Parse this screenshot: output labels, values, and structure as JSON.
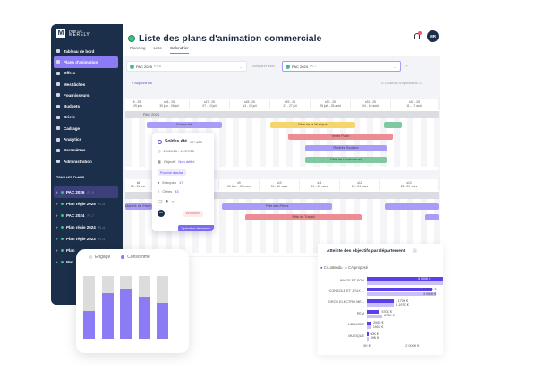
{
  "app": {
    "brand_small": "High Co",
    "brand": "MERELY",
    "avatar": "MR",
    "notification_icon": "bell-icon"
  },
  "sidebar": {
    "items": [
      {
        "label": "Tableau de bord",
        "icon": "home-icon"
      },
      {
        "label": "Plans d'animation",
        "icon": "calendar-icon",
        "active": true
      },
      {
        "label": "Offres",
        "icon": "tag-icon"
      },
      {
        "label": "Mes tâches",
        "icon": "tasks-icon"
      },
      {
        "label": "Fournisseurs",
        "icon": "truck-icon"
      },
      {
        "label": "Budgets",
        "icon": "budget-icon"
      },
      {
        "label": "Briefs",
        "icon": "briefcase-icon"
      },
      {
        "label": "Cadrage",
        "icon": "frame-icon"
      },
      {
        "label": "Analytics",
        "icon": "chart-icon"
      },
      {
        "label": "Paramètres",
        "icon": "gear-icon"
      },
      {
        "label": "Administration",
        "icon": "admin-icon"
      }
    ],
    "plans_header": "TOUS LES PLANS",
    "plans": [
      {
        "label": "PAC 2026",
        "tag": "PL-9",
        "active": true
      },
      {
        "label": "Plan régie 2025",
        "tag": "PL-8"
      },
      {
        "label": "PAC 2024",
        "tag": "PL-7"
      },
      {
        "label": "Plan régie 2024",
        "tag": "PL-6"
      },
      {
        "label": "Plan régie 2023",
        "tag": "PL-5"
      },
      {
        "label": "Plan",
        "tag": ""
      },
      {
        "label": "Mar",
        "tag": ""
      }
    ]
  },
  "header": {
    "title": "Liste des plans d'animation commerciale",
    "tabs": [
      "Planning",
      "Liste",
      "Calendrier"
    ],
    "active_tab": "Calendrier"
  },
  "filters": {
    "plan": "PAC 2025",
    "plan_tag": "PL-8",
    "compare_label": "comparer avec",
    "compare": "PAC 2024",
    "compare_tag": "PL-7",
    "today": "Aujourd'hui",
    "colors": "Couleurs d'opérations"
  },
  "calendar_top": {
    "weeks": [
      [
        "5 - 25",
        "- 29 juin"
      ],
      [
        "s26 - 25",
        "30 juin - 06 juil"
      ],
      [
        "s27 - 25",
        "07 - 13 juil"
      ],
      [
        "s28 - 25",
        "14 - 20 juil"
      ],
      [
        "s29 - 25",
        "21 - 27 juil"
      ],
      [
        "s30 - 25",
        "28 juil. - 03 août"
      ],
      [
        "s31 - 25",
        "04 - 10 août"
      ],
      [
        "s32 - 25",
        "11 - 17 août"
      ]
    ],
    "band": "PAC 2025",
    "bars": [
      {
        "label": "Soldes été",
        "color": "#a79cf7"
      },
      {
        "label": "Fête de la Musique",
        "color": "#f6d66b"
      },
      {
        "label": "",
        "color": "#7fc8a2"
      },
      {
        "label": "Vente Flash",
        "color": "#ec8d94"
      },
      {
        "label": "Rentrée Scolaire",
        "color": "#a79cf7"
      },
      {
        "label": "Fête de l'audiovisuel",
        "color": "#7fc8a2"
      }
    ]
  },
  "calendar_bottom": {
    "weeks": [
      [
        "s6",
        "05 - 11 févr."
      ],
      [
        "s8",
        "25 févr."
      ],
      [
        "s9",
        "26 févr. - 03 mars"
      ],
      [
        "s10",
        "04 - 10 mars"
      ],
      [
        "s11",
        "11 - 17 mars"
      ],
      [
        "s12",
        "18 - 24 mars"
      ],
      [
        "s13",
        "25 - 31 mars"
      ]
    ],
    "bars": [
      {
        "label": "Marché de l'hiver"
      },
      {
        "label": "Fête des Pères"
      },
      {
        "label": "Fête du Travail"
      }
    ]
  },
  "popup": {
    "title": "Soldes été",
    "code": "OP-425",
    "dates": "29/06/25 - 11/07/25",
    "objective_label": "Objectif",
    "objective": "Non défini",
    "chip": "Pouvoir d'achat",
    "brands_label": "Marques",
    "brands": "17",
    "offers_label": "Offres",
    "offers": "33",
    "avatar": "MR",
    "status": "Brouillon",
    "mass": "Opération de masse"
  },
  "chart_data": [
    {
      "type": "bar",
      "stacked": true,
      "legend": [
        "Engagé",
        "Consommé"
      ],
      "legend_placement": "top",
      "colors": {
        "Engagé": "#dcdcdc",
        "Consommé": "#8b7cf6"
      },
      "series": [
        {
          "name": "Engagé",
          "values": [
            1,
            1,
            1,
            1,
            1
          ]
        },
        {
          "name": "Consommé",
          "values": [
            0.45,
            0.73,
            0.8,
            0.67,
            0.57
          ]
        }
      ]
    },
    {
      "type": "bar",
      "orientation": "horizontal",
      "title": "Atteinte des objectifs par département",
      "legend": [
        "CA attendu",
        "CA proposé"
      ],
      "legend_placement": "top-left",
      "categories": [
        "IMAGE ET SON",
        "CONSOLE ET JEUX ...",
        "GROS ELECTRO ME...",
        "PEM",
        "LIBRAIRIE",
        "MUSIQUE"
      ],
      "series": [
        {
          "name": "CA attendu",
          "color": "#5b3fe8",
          "values": [
            5000,
            2885,
            1170,
            570,
            200,
            60
          ],
          "labels": [
            "5 000K €",
            "2 885K €",
            "1 170K €",
            "570K €",
            "200K €",
            "60K €"
          ]
        },
        {
          "name": "CA proposé",
          "color": "#c9c0fb",
          "values": [
            5000,
            3051,
            1197,
            673,
            190,
            69
          ],
          "labels": [
            "",
            "3 051K €",
            "1 197K €",
            "673K €",
            "190K €",
            "69K €"
          ]
        }
      ],
      "xticks": [
        "0K €",
        "2 000K €",
        "4 000K €"
      ],
      "xlim": [
        0,
        5000
      ]
    }
  ]
}
